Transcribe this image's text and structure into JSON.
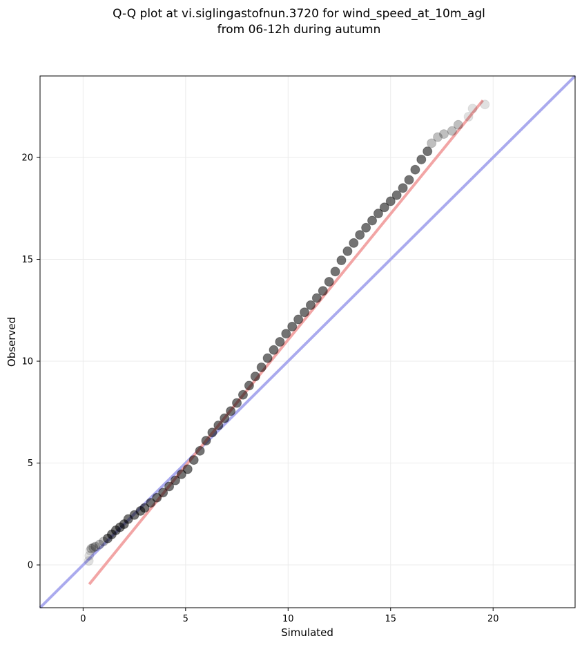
{
  "chart_data": {
    "type": "scatter",
    "title": "Q-Q plot at vi.siglingastofnun.3720 for wind_speed_at_10m_agl",
    "subtitle": "from 06-12h during autumn",
    "xlabel": "Simulated",
    "ylabel": "Observed",
    "xlim": [
      -2.1,
      24.0
    ],
    "ylim": [
      -2.1,
      24.0
    ],
    "xticks": [
      "0",
      "5",
      "10",
      "15",
      "20"
    ],
    "yticks": [
      "0",
      "5",
      "10",
      "15",
      "20"
    ],
    "grid": true,
    "legend": "none",
    "colors": {
      "points": "#000000",
      "identity_line": "#aaaaee",
      "fit_line": "#f2a5a5",
      "axes": "#000000",
      "grid": "#ebebeb"
    },
    "reference_lines": [
      {
        "role": "identity",
        "x": [
          -2.1,
          24.0
        ],
        "y": [
          -2.1,
          24.0
        ]
      },
      {
        "role": "fit",
        "x": [
          0.3,
          19.5
        ],
        "y": [
          -0.95,
          22.8
        ]
      }
    ],
    "series": [
      {
        "x": [
          0.28,
          0.3,
          0.35,
          0.4,
          0.5,
          0.6,
          0.8,
          1.0,
          1.2,
          1.4,
          1.6,
          1.8,
          2.0,
          2.2,
          2.5,
          2.8,
          3.0,
          3.3,
          3.6,
          3.9,
          4.2,
          4.5,
          4.8,
          5.1,
          5.4,
          5.7,
          6.0,
          6.3,
          6.6,
          6.9,
          7.2,
          7.5,
          7.8,
          8.1,
          8.4,
          8.7,
          9.0,
          9.3,
          9.6,
          9.9,
          10.2,
          10.5,
          10.8,
          11.1,
          11.4,
          11.7,
          12.0,
          12.3,
          12.6,
          12.9,
          13.2,
          13.5,
          13.8,
          14.1,
          14.4,
          14.7,
          15.0,
          15.3,
          15.6,
          15.9,
          16.2,
          16.5,
          16.8,
          17.0,
          17.3,
          17.6,
          18.0,
          18.3,
          18.8,
          19.0,
          19.6
        ],
        "y": [
          0.2,
          0.45,
          0.7,
          0.8,
          0.85,
          0.9,
          1.0,
          1.15,
          1.3,
          1.5,
          1.7,
          1.85,
          2.0,
          2.25,
          2.45,
          2.65,
          2.8,
          3.05,
          3.3,
          3.55,
          3.85,
          4.15,
          4.45,
          4.7,
          5.15,
          5.6,
          6.1,
          6.5,
          6.85,
          7.2,
          7.55,
          7.95,
          8.35,
          8.8,
          9.25,
          9.7,
          10.15,
          10.55,
          10.95,
          11.35,
          11.7,
          12.05,
          12.4,
          12.75,
          13.1,
          13.45,
          13.9,
          14.4,
          14.95,
          15.4,
          15.8,
          16.2,
          16.55,
          16.9,
          17.25,
          17.55,
          17.85,
          18.15,
          18.5,
          18.9,
          19.4,
          19.9,
          20.3,
          20.7,
          21.0,
          21.15,
          21.3,
          21.6,
          22.0,
          22.4,
          22.6
        ]
      }
    ]
  }
}
